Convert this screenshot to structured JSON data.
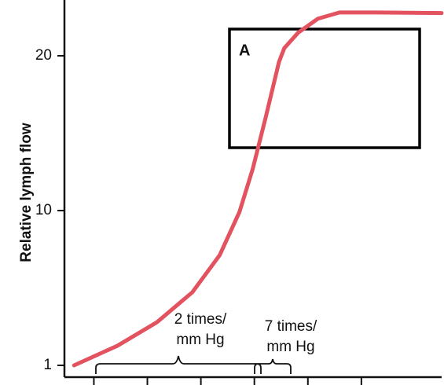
{
  "chart_data": {
    "type": "line",
    "y_label": "Relative lymph flow",
    "x": [
      0.63,
      1.44,
      2.18,
      2.84,
      3.35,
      3.72,
      3.97,
      4.21,
      4.46,
      4.56,
      4.82,
      5.19,
      5.59,
      6.29,
      7.5
    ],
    "series": [
      {
        "color": "#e2525f",
        "values": [
          1,
          2.14,
          3.51,
          5.25,
          7.4,
          9.91,
          12.7,
          16.0,
          19.6,
          20.5,
          21.5,
          22.4,
          22.8,
          22.8,
          22.76
        ]
      }
    ],
    "xlim": [
      0.45,
      7.5
    ],
    "xticks": [
      1,
      2,
      3,
      4,
      5,
      6
    ],
    "ylim": [
      0.3,
      23.7
    ],
    "yticks": [
      1,
      10,
      20
    ],
    "box_label": "A",
    "annotations": [
      {
        "lines": [
          "2 times/",
          "mm Hg"
        ]
      },
      {
        "lines": [
          "7 times/",
          "mm Hg"
        ]
      }
    ]
  }
}
